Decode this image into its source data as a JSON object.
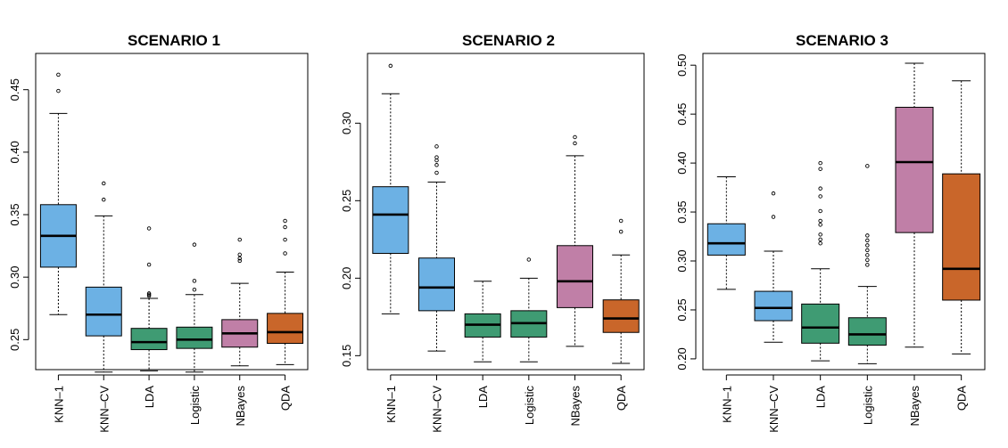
{
  "colors": {
    "knn": "#6cb1e4",
    "lda": "#3f9b73",
    "nbayes": "#c07fa7",
    "qda": "#c9662a",
    "median": "#000000",
    "frame": "#000000"
  },
  "chart_data": [
    {
      "type": "box",
      "title": "SCENARIO 1",
      "categories": [
        "KNN–1",
        "KNN–CV",
        "LDA",
        "Logistic",
        "NBayes",
        "QDA"
      ],
      "ylim": [
        0.226,
        0.479
      ],
      "yticks": [
        0.25,
        0.3,
        0.35,
        0.4,
        0.45
      ],
      "ytick_labels": [
        "0.25",
        "0.30",
        "0.35",
        "0.40",
        "0.45"
      ],
      "boxes": [
        {
          "category": "KNN–1",
          "lo": 0.27,
          "q1": 0.308,
          "median": 0.333,
          "q3": 0.358,
          "hi": 0.431,
          "outliers": [
            0.449,
            0.462
          ],
          "color": "knn"
        },
        {
          "category": "KNN–CV",
          "lo": 0.224,
          "q1": 0.253,
          "median": 0.27,
          "q3": 0.292,
          "hi": 0.349,
          "outliers": [
            0.362,
            0.375
          ],
          "color": "knn"
        },
        {
          "category": "LDA",
          "lo": 0.225,
          "q1": 0.242,
          "median": 0.248,
          "q3": 0.259,
          "hi": 0.283,
          "outliers": [
            0.285,
            0.286,
            0.287,
            0.31,
            0.339
          ],
          "color": "lda"
        },
        {
          "category": "Logistic",
          "lo": 0.224,
          "q1": 0.243,
          "median": 0.25,
          "q3": 0.26,
          "hi": 0.286,
          "outliers": [
            0.29,
            0.297,
            0.326
          ],
          "color": "lda"
        },
        {
          "category": "NBayes",
          "lo": 0.229,
          "q1": 0.244,
          "median": 0.255,
          "q3": 0.266,
          "hi": 0.295,
          "outliers": [
            0.313,
            0.315,
            0.318,
            0.33
          ],
          "color": "nbayes"
        },
        {
          "category": "QDA",
          "lo": 0.23,
          "q1": 0.247,
          "median": 0.256,
          "q3": 0.271,
          "hi": 0.304,
          "outliers": [
            0.319,
            0.33,
            0.34,
            0.345
          ],
          "color": "qda"
        }
      ]
    },
    {
      "type": "box",
      "title": "SCENARIO 2",
      "categories": [
        "KNN–1",
        "KNN–CV",
        "LDA",
        "Logistic",
        "NBayes",
        "QDA"
      ],
      "ylim": [
        0.141,
        0.345
      ],
      "yticks": [
        0.15,
        0.2,
        0.25,
        0.3
      ],
      "ytick_labels": [
        "0.15",
        "0.20",
        "0.25",
        "0.30"
      ],
      "boxes": [
        {
          "category": "KNN–1",
          "lo": 0.177,
          "q1": 0.216,
          "median": 0.241,
          "q3": 0.259,
          "hi": 0.319,
          "outliers": [
            0.337
          ],
          "color": "knn"
        },
        {
          "category": "KNN–CV",
          "lo": 0.153,
          "q1": 0.179,
          "median": 0.194,
          "q3": 0.213,
          "hi": 0.262,
          "outliers": [
            0.268,
            0.273,
            0.276,
            0.278,
            0.285
          ],
          "color": "knn"
        },
        {
          "category": "LDA",
          "lo": 0.146,
          "q1": 0.162,
          "median": 0.17,
          "q3": 0.177,
          "hi": 0.198,
          "outliers": [],
          "color": "lda"
        },
        {
          "category": "Logistic",
          "lo": 0.146,
          "q1": 0.162,
          "median": 0.171,
          "q3": 0.179,
          "hi": 0.2,
          "outliers": [
            0.212
          ],
          "color": "lda"
        },
        {
          "category": "NBayes",
          "lo": 0.156,
          "q1": 0.181,
          "median": 0.198,
          "q3": 0.221,
          "hi": 0.279,
          "outliers": [
            0.287,
            0.291
          ],
          "color": "nbayes"
        },
        {
          "category": "QDA",
          "lo": 0.145,
          "q1": 0.165,
          "median": 0.174,
          "q3": 0.186,
          "hi": 0.215,
          "outliers": [
            0.23,
            0.237
          ],
          "color": "qda"
        }
      ]
    },
    {
      "type": "box",
      "title": "SCENARIO 3",
      "categories": [
        "KNN–1",
        "KNN–CV",
        "LDA",
        "Logistic",
        "NBayes",
        "QDA"
      ],
      "ylim": [
        0.189,
        0.512
      ],
      "yticks": [
        0.2,
        0.25,
        0.3,
        0.35,
        0.4,
        0.45,
        0.5
      ],
      "ytick_labels": [
        "0.20",
        "0.25",
        "0.30",
        "0.35",
        "0.40",
        "0.45",
        "0.50"
      ],
      "boxes": [
        {
          "category": "KNN–1",
          "lo": 0.271,
          "q1": 0.306,
          "median": 0.318,
          "q3": 0.338,
          "hi": 0.386,
          "outliers": [],
          "color": "knn"
        },
        {
          "category": "KNN–CV",
          "lo": 0.217,
          "q1": 0.239,
          "median": 0.252,
          "q3": 0.269,
          "hi": 0.31,
          "outliers": [
            0.345,
            0.369
          ],
          "color": "knn"
        },
        {
          "category": "LDA",
          "lo": 0.198,
          "q1": 0.216,
          "median": 0.232,
          "q3": 0.256,
          "hi": 0.292,
          "outliers": [
            0.318,
            0.322,
            0.327,
            0.337,
            0.341,
            0.351,
            0.366,
            0.374,
            0.394,
            0.4
          ],
          "color": "lda"
        },
        {
          "category": "Logistic",
          "lo": 0.195,
          "q1": 0.214,
          "median": 0.225,
          "q3": 0.242,
          "hi": 0.274,
          "outliers": [
            0.296,
            0.301,
            0.306,
            0.311,
            0.316,
            0.321,
            0.326,
            0.397
          ],
          "color": "lda"
        },
        {
          "category": "NBayes",
          "lo": 0.212,
          "q1": 0.329,
          "median": 0.401,
          "q3": 0.457,
          "hi": 0.502,
          "outliers": [],
          "color": "nbayes"
        },
        {
          "category": "QDA",
          "lo": 0.205,
          "q1": 0.26,
          "median": 0.292,
          "q3": 0.389,
          "hi": 0.484,
          "outliers": [],
          "color": "qda"
        }
      ]
    }
  ]
}
